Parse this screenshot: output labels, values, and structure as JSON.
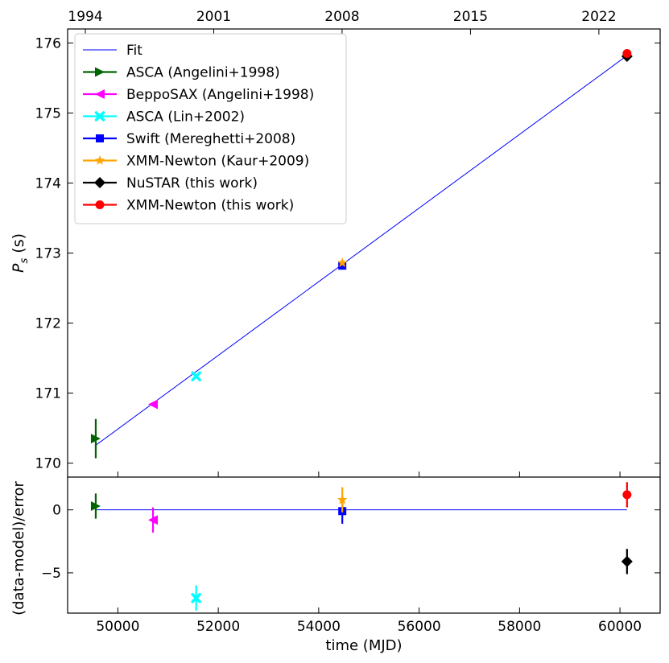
{
  "chart_data": [
    {
      "type": "scatter",
      "panel": "top",
      "ylabel": "P_s (s)",
      "ylabel_main": "P",
      "ylabel_sub": "s",
      "ylabel_unit": " (s)",
      "xlim": [
        49000,
        60800
      ],
      "ylim": [
        169.8,
        176.2
      ],
      "yticks": [
        170,
        171,
        172,
        173,
        174,
        175,
        176
      ],
      "top_axis_ticks": [
        {
          "mjd": 49353,
          "label": "1994"
        },
        {
          "mjd": 51910,
          "label": "2001"
        },
        {
          "mjd": 54466,
          "label": "2008"
        },
        {
          "mjd": 57023,
          "label": "2015"
        },
        {
          "mjd": 59580,
          "label": "2022"
        }
      ],
      "fit": {
        "name": "Fit",
        "color": "#0000ff",
        "x": [
          49550,
          60140
        ],
        "y": [
          170.25,
          175.82
        ]
      },
      "legend_position": "upper-left",
      "series": [
        {
          "name": "ASCA (Angelini+1998)",
          "color": "#006400",
          "marker": "triangle-right",
          "points": [
            {
              "x": 49560,
              "y": 170.35,
              "yerr": 0.28
            }
          ]
        },
        {
          "name": "BeppoSAX (Angelini+1998)",
          "color": "#ff00ff",
          "marker": "triangle-left",
          "points": [
            {
              "x": 50700,
              "y": 170.84,
              "yerr": 0.03
            }
          ]
        },
        {
          "name": "ASCA (Lin+2002)",
          "color": "#00ffff",
          "marker": "x",
          "points": [
            {
              "x": 51560,
              "y": 171.24,
              "yerr": 0.03
            }
          ]
        },
        {
          "name": "Swift (Mereghetti+2008)",
          "color": "#0000ff",
          "marker": "square",
          "points": [
            {
              "x": 54470,
              "y": 172.82,
              "yerr": 0.05
            }
          ]
        },
        {
          "name": "XMM-Newton (Kaur+2009)",
          "color": "#ffa500",
          "marker": "star",
          "points": [
            {
              "x": 54470,
              "y": 172.86,
              "yerr": 0.03
            }
          ]
        },
        {
          "name": "NuSTAR (this work)",
          "color": "#000000",
          "marker": "diamond",
          "points": [
            {
              "x": 60140,
              "y": 175.81,
              "yerr": 0.02
            }
          ]
        },
        {
          "name": "XMM-Newton (this work)",
          "color": "#ff0000",
          "marker": "circle",
          "points": [
            {
              "x": 60140,
              "y": 175.85,
              "yerr": 0.02
            }
          ]
        }
      ]
    },
    {
      "type": "scatter",
      "panel": "bottom",
      "xlabel": "time (MJD)",
      "ylabel": "(data-model)/error",
      "xlim": [
        49000,
        60800
      ],
      "ylim": [
        -8.2,
        2.6
      ],
      "xticks": [
        50000,
        52000,
        54000,
        56000,
        58000,
        60000
      ],
      "yticks": [
        {
          "v": -5,
          "label": "−5"
        },
        {
          "v": 0,
          "label": "0"
        }
      ],
      "zero_line": {
        "color": "#0000ff",
        "x": [
          49550,
          60140
        ],
        "y": 0
      },
      "series": [
        {
          "name": "ASCA (Angelini+1998)",
          "color": "#006400",
          "marker": "triangle-right",
          "points": [
            {
              "x": 49560,
              "y": 0.3,
              "yerr": 1.0
            }
          ]
        },
        {
          "name": "BeppoSAX (Angelini+1998)",
          "color": "#ff00ff",
          "marker": "triangle-left",
          "points": [
            {
              "x": 50700,
              "y": -0.8,
              "yerr": 1.0
            }
          ]
        },
        {
          "name": "ASCA (Lin+2002)",
          "color": "#00ffff",
          "marker": "x",
          "points": [
            {
              "x": 51560,
              "y": -7.0,
              "yerr": 1.0
            }
          ]
        },
        {
          "name": "Swift (Mereghetti+2008)",
          "color": "#0000ff",
          "marker": "square",
          "points": [
            {
              "x": 54470,
              "y": -0.1,
              "yerr": 1.0
            }
          ]
        },
        {
          "name": "XMM-Newton (Kaur+2009)",
          "color": "#ffa500",
          "marker": "star",
          "points": [
            {
              "x": 54470,
              "y": 0.8,
              "yerr": 1.0
            }
          ]
        },
        {
          "name": "NuSTAR (this work)",
          "color": "#000000",
          "marker": "diamond",
          "points": [
            {
              "x": 60140,
              "y": -4.1,
              "yerr": 1.0
            }
          ]
        },
        {
          "name": "XMM-Newton (this work)",
          "color": "#ff0000",
          "marker": "circle",
          "points": [
            {
              "x": 60140,
              "y": 1.2,
              "yerr": 1.0
            }
          ]
        }
      ]
    }
  ]
}
